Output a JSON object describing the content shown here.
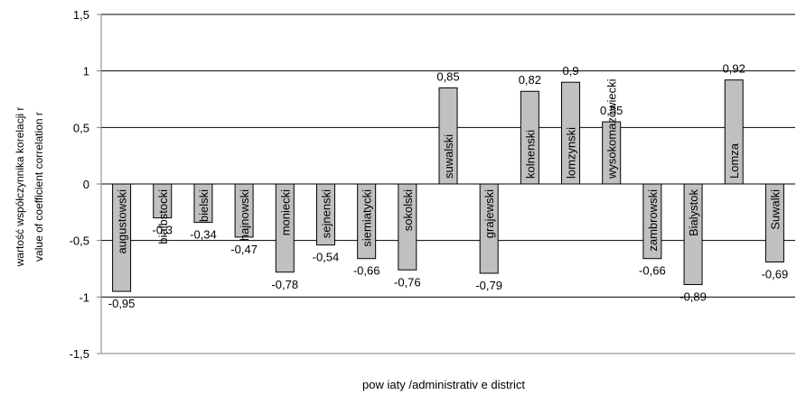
{
  "chart_data": {
    "type": "bar",
    "categories": [
      "augustowski",
      "bialbstocki",
      "bielski",
      "hajnowski",
      "moniecki",
      "sejnenski",
      "siemiatycki",
      "sokolski",
      "suwalski",
      "grajewski",
      "kolnenski",
      "lomzynski",
      "wysokomazowiecki",
      "zambrowski",
      "Bialystok",
      "Lomza",
      "Suwalki"
    ],
    "values": [
      -0.95,
      -0.3,
      -0.34,
      -0.47,
      -0.78,
      -0.54,
      -0.66,
      -0.76,
      0.85,
      -0.79,
      0.82,
      0.9,
      0.55,
      -0.66,
      -0.89,
      0.92,
      -0.69
    ],
    "value_labels": [
      "-0,95",
      "-0,3",
      "-0,34",
      "-0,47",
      "-0,78",
      "-0,54",
      "-0,66",
      "-0,76",
      "0,85",
      "-0,79",
      "0,82",
      "0,9",
      "0,55",
      "-0,66",
      "-0,89",
      "0,92",
      "-0,69"
    ],
    "y_ticks": [
      "1,5",
      "1",
      "0,5",
      "0",
      "-0,5",
      "-1",
      "-1,5"
    ],
    "ylim": [
      -1.5,
      1.5
    ],
    "xlabel": "pow iaty /administrativ e district",
    "ylabel_line1": "wartość współczynnika korelacji r",
    "ylabel_line2": "value of coefficient correlation r",
    "grid": true,
    "colors": {
      "bar_fill": "#c0c0c0",
      "bar_stroke": "#000000",
      "grid": "#000000",
      "axis": "#808080"
    }
  }
}
